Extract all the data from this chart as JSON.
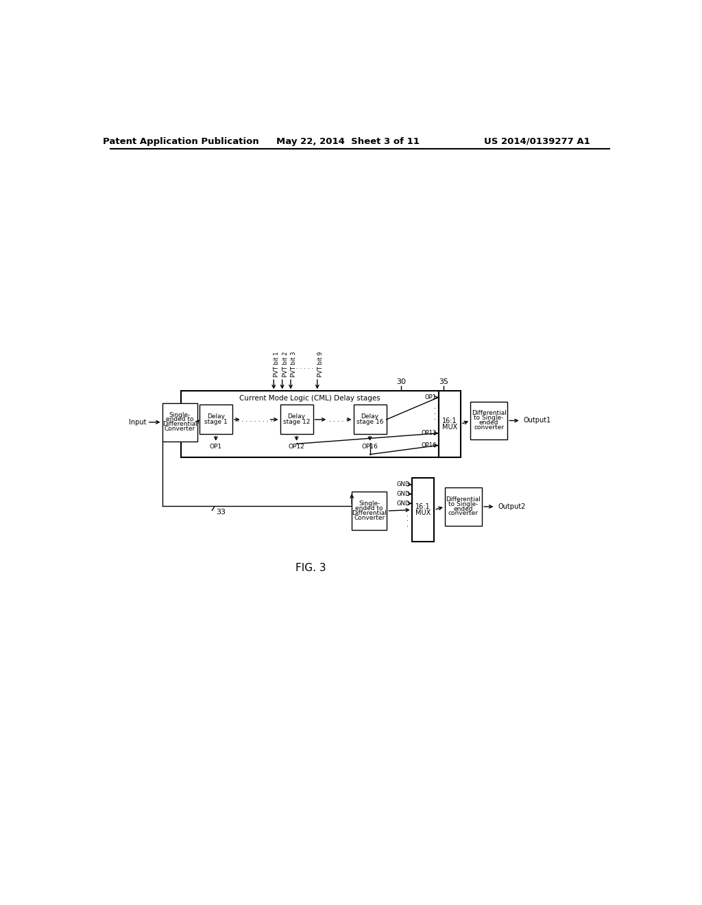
{
  "title_left": "Patent Application Publication",
  "title_mid": "May 22, 2014  Sheet 3 of 11",
  "title_right": "US 2014/0139277 A1",
  "fig_label": "FIG. 3",
  "background": "#ffffff",
  "line_color": "#000000",
  "font_size_header": 9.5,
  "font_size_body": 7,
  "font_size_fig": 11
}
